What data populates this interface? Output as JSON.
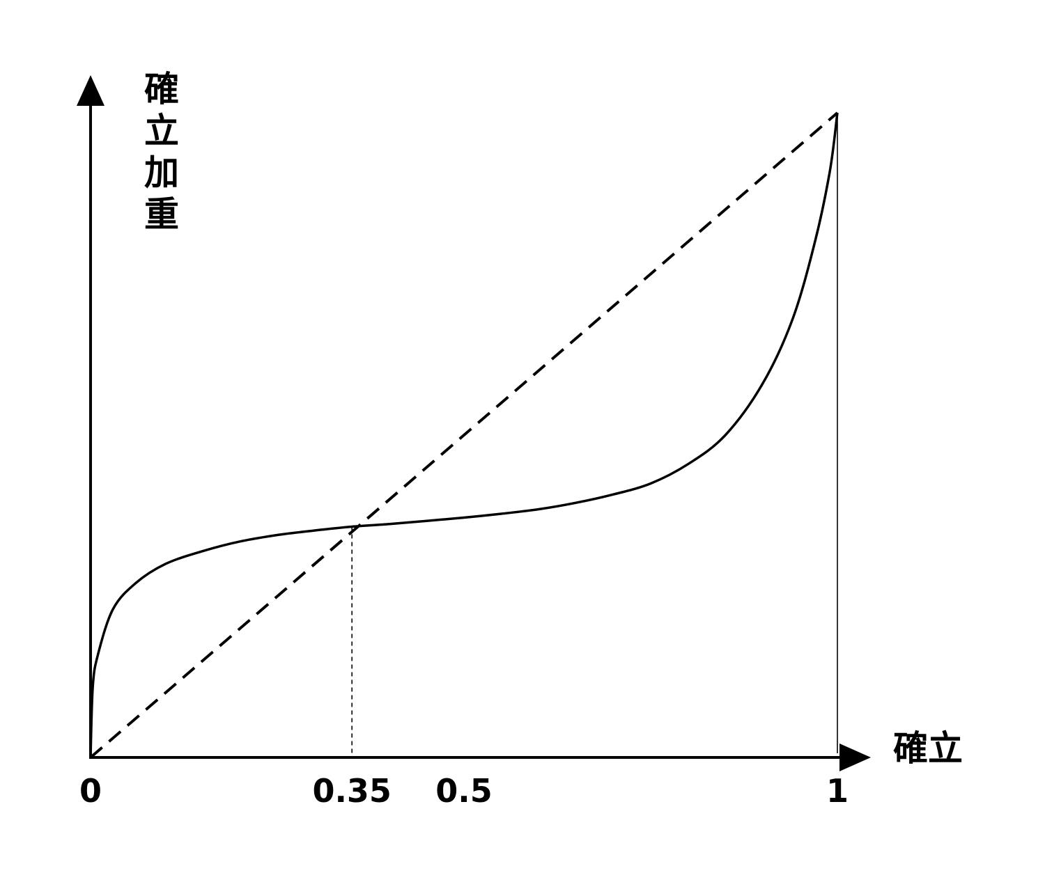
{
  "chart_data": {
    "type": "line",
    "xlabel": "確立",
    "ylabel": "確立加重",
    "xlim": [
      0,
      1
    ],
    "ylim": [
      0,
      1
    ],
    "grid": false,
    "legend": "none",
    "x_ticks": [
      {
        "value": 0,
        "label": "0"
      },
      {
        "value": 0.35,
        "label": "0.35"
      },
      {
        "value": 0.5,
        "label": "0.5"
      },
      {
        "value": 1,
        "label": "1"
      }
    ],
    "series": [
      {
        "style": "dashed",
        "x": [
          0,
          1
        ],
        "y": [
          0,
          1
        ]
      },
      {
        "style": "solid",
        "x": [
          0,
          0.003,
          0.01,
          0.03,
          0.06,
          0.1,
          0.15,
          0.2,
          0.25,
          0.3,
          0.35,
          0.4,
          0.45,
          0.5,
          0.55,
          0.6,
          0.65,
          0.7,
          0.75,
          0.8,
          0.85,
          0.9,
          0.94,
          0.97,
          0.99,
          1.0
        ],
        "y": [
          0,
          0.11,
          0.16,
          0.23,
          0.27,
          0.3,
          0.32,
          0.335,
          0.345,
          0.352,
          0.358,
          0.362,
          0.367,
          0.372,
          0.378,
          0.385,
          0.395,
          0.408,
          0.425,
          0.455,
          0.5,
          0.58,
          0.68,
          0.8,
          0.91,
          1.0
        ]
      }
    ],
    "reference_lines": [
      {
        "x": 0.35,
        "style": "dashed-thin"
      },
      {
        "x": 1,
        "style": "solid-thin"
      }
    ]
  }
}
